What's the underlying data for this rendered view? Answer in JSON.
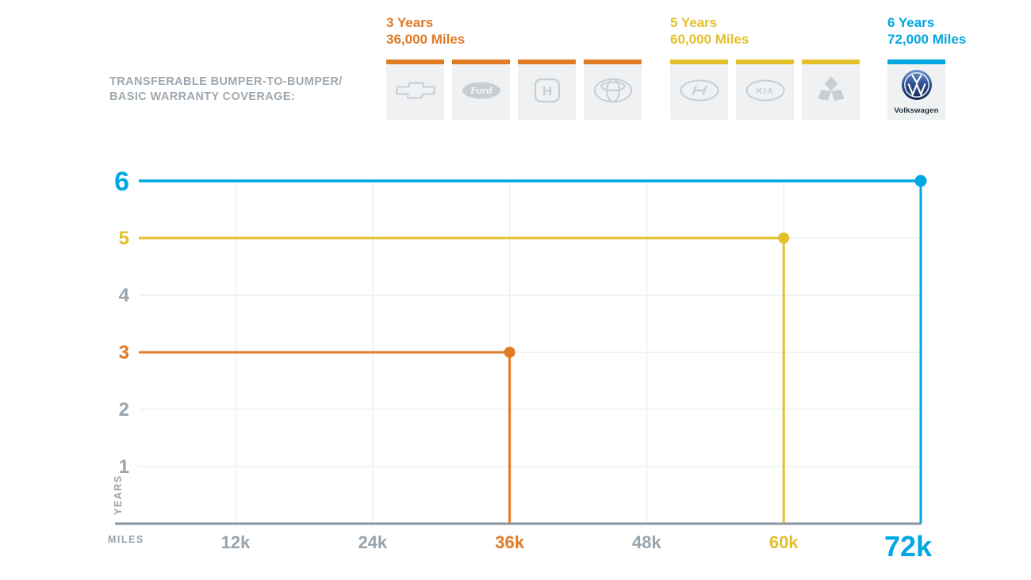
{
  "header": {
    "title_line1": "TRANSFERABLE BUMPER-TO-BUMPER/",
    "title_line2": "BASIC WARRANTY COVERAGE:"
  },
  "groups": [
    {
      "years_label": "3 Years",
      "miles_label": "36,000 Miles",
      "years": 3,
      "miles": 36000,
      "color": "#E07B26",
      "brands": [
        "Chevrolet",
        "Ford",
        "Honda",
        "Toyota"
      ]
    },
    {
      "years_label": "5 Years",
      "miles_label": "60,000 Miles",
      "years": 5,
      "miles": 60000,
      "color": "#E4C02C",
      "brands": [
        "Hyundai",
        "Kia",
        "Mitsubishi"
      ]
    },
    {
      "years_label": "6 Years",
      "miles_label": "72,000 Miles",
      "years": 6,
      "miles": 72000,
      "color": "#00A7E1",
      "brands": [
        "Volkswagen"
      ]
    }
  ],
  "vw_tile_label": "Volkswagen",
  "chart_data": {
    "type": "line",
    "title": "Transferable bumper-to-bumper / basic warranty coverage",
    "xlabel": "MILES",
    "ylabel": "YEARS",
    "xlim": [
      0,
      72000
    ],
    "ylim": [
      0,
      6
    ],
    "grid": true,
    "x_ticks": [
      {
        "label": "12k",
        "value": 12000,
        "color": "#98A3AB"
      },
      {
        "label": "24k",
        "value": 24000,
        "color": "#98A3AB"
      },
      {
        "label": "36k",
        "value": 36000,
        "color": "#E07B26"
      },
      {
        "label": "48k",
        "value": 48000,
        "color": "#98A3AB"
      },
      {
        "label": "60k",
        "value": 60000,
        "color": "#E4C02C"
      },
      {
        "label": "72k",
        "value": 72000,
        "color": "#00A7E1",
        "emphasis": true
      }
    ],
    "y_ticks": [
      {
        "label": "1",
        "value": 1,
        "color": "#98A3AB"
      },
      {
        "label": "2",
        "value": 2,
        "color": "#98A3AB"
      },
      {
        "label": "3",
        "value": 3,
        "color": "#E07B26"
      },
      {
        "label": "4",
        "value": 4,
        "color": "#98A3AB"
      },
      {
        "label": "5",
        "value": 5,
        "color": "#E4C02C"
      },
      {
        "label": "6",
        "value": 6,
        "color": "#00A7E1",
        "emphasis": true
      }
    ],
    "series": [
      {
        "name": "3 Years / 36,000 Miles",
        "brands": [
          "Chevrolet",
          "Ford",
          "Honda",
          "Toyota"
        ],
        "years": 3,
        "miles": 36000,
        "color": "#E07B26"
      },
      {
        "name": "5 Years / 60,000 Miles",
        "brands": [
          "Hyundai",
          "Kia",
          "Mitsubishi"
        ],
        "years": 5,
        "miles": 60000,
        "color": "#E4C02C"
      },
      {
        "name": "6 Years / 72,000 Miles",
        "brands": [
          "Volkswagen"
        ],
        "years": 6,
        "miles": 72000,
        "color": "#00A7E1"
      }
    ]
  },
  "colors": {
    "tick_gray": "#98A3AB",
    "title_gray": "#9EA8B0",
    "axis_gray": "#8A949D",
    "gridline": "#EDEFF1",
    "tile_background": "#EFF1F2",
    "logo_gray": "#C7CED4"
  }
}
